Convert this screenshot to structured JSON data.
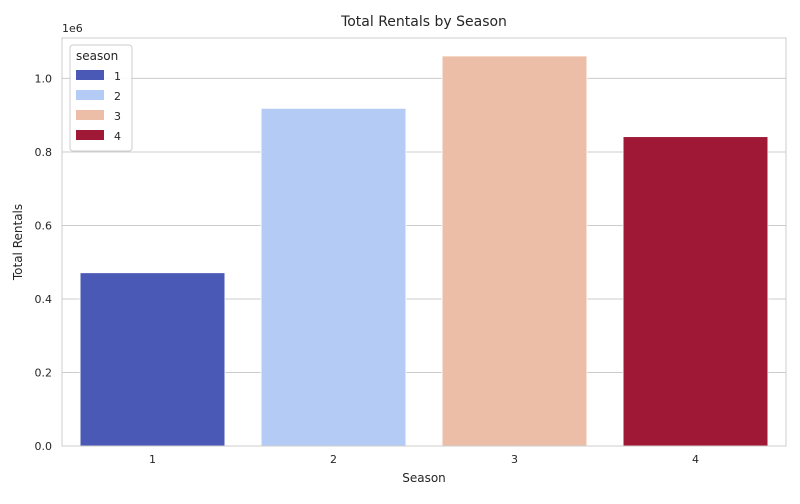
{
  "chart_data": {
    "type": "bar",
    "title": "Total Rentals by Season",
    "xlabel": "Season",
    "ylabel": "Total Rentals",
    "y_offset_label": "1e6",
    "categories": [
      "1",
      "2",
      "3",
      "4"
    ],
    "values": [
      471348,
      918589,
      1061129,
      841613
    ],
    "colors": [
      "#4a59b5",
      "#b3cbf5",
      "#edbea7",
      "#9f1836"
    ],
    "ylim": [
      0,
      1110000
    ],
    "yticks": [
      0,
      200000,
      400000,
      600000,
      800000,
      1000000
    ],
    "ytick_labels": [
      "0.0",
      "0.2",
      "0.4",
      "0.6",
      "0.8",
      "1.0"
    ],
    "grid": true,
    "legend": {
      "title": "season",
      "placement": "top-left",
      "entries": [
        "1",
        "2",
        "3",
        "4"
      ]
    }
  }
}
